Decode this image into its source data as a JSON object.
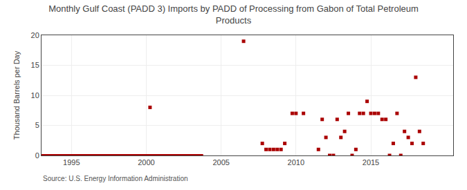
{
  "chart_data": {
    "type": "scatter",
    "title": "Monthly Gulf Coast (PADD 3) Imports by PADD of Processing from Gabon of Total Petroleum\nProducts",
    "ylabel": "Thousand Barrels per Day",
    "annotations": [
      "Source: U.S. Energy Information Administration"
    ],
    "xlim": [
      1993.0,
      2020.5
    ],
    "ylim": [
      0,
      20
    ],
    "xticks": [
      1995,
      2000,
      2005,
      2010,
      2015
    ],
    "yticks": [
      0,
      5,
      10,
      15,
      20
    ],
    "grid": true,
    "series": [
      {
        "type": "line",
        "color": "#aa0000",
        "line_style": "solid",
        "x": [
          1993.0,
          2003.8
        ],
        "values": [
          0,
          0
        ]
      },
      {
        "type": "scatter",
        "color": "#aa0000",
        "marker": "square",
        "x": [
          2000.25,
          2006.5,
          2007.75,
          2008.0,
          2008.25,
          2008.5,
          2008.75,
          2009.0,
          2009.25,
          2009.75,
          2010.0,
          2010.5,
          2011.5,
          2011.75,
          2012.0,
          2012.25,
          2012.5,
          2012.75,
          2013.0,
          2013.25,
          2013.5,
          2013.75,
          2014.0,
          2014.25,
          2014.5,
          2014.75,
          2015.0,
          2015.25,
          2015.5,
          2015.75,
          2016.0,
          2016.25,
          2016.5,
          2016.75,
          2017.0,
          2017.25,
          2017.5,
          2017.75,
          2018.0,
          2018.25,
          2018.5
        ],
        "values": [
          8,
          19,
          2,
          1,
          1,
          1,
          1,
          1,
          2,
          7,
          7,
          7,
          1,
          6,
          3,
          0,
          0,
          6,
          3,
          4,
          7,
          0,
          1,
          7,
          7,
          9,
          7,
          7,
          7,
          6,
          6,
          0,
          2,
          7,
          0,
          4,
          3,
          2,
          13,
          4,
          2
        ]
      }
    ]
  }
}
